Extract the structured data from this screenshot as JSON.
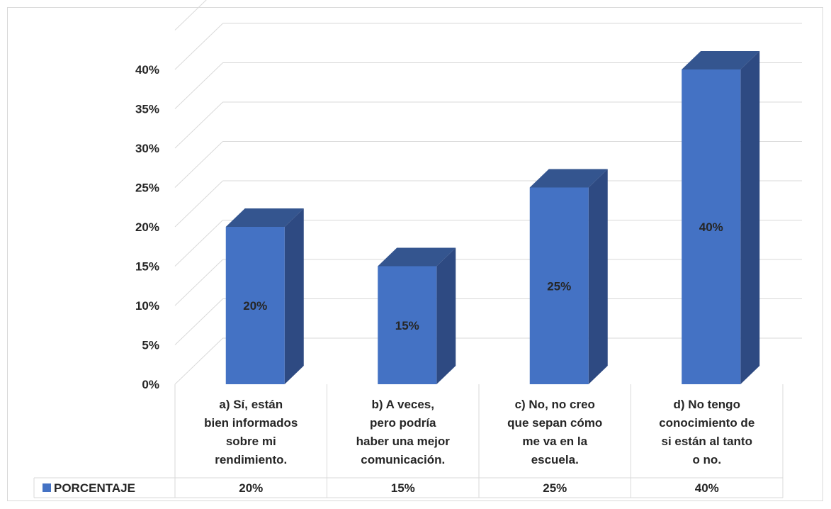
{
  "chart_data": {
    "type": "bar",
    "categories": [
      [
        "a) Sí, están",
        "bien informados",
        "sobre mi",
        "rendimiento."
      ],
      [
        "b) A veces,",
        "pero podría",
        "haber una mejor",
        "comunicación."
      ],
      [
        "c) No, no creo",
        "que sepan cómo",
        "me va en la",
        "escuela."
      ],
      [
        "d) No tengo",
        "conocimiento de",
        "si están al tanto",
        "o no."
      ]
    ],
    "series": [
      {
        "name": "PORCENTAJE",
        "values": [
          20,
          15,
          25,
          40
        ],
        "labels": [
          "20%",
          "15%",
          "25%",
          "40%"
        ],
        "color": "#4472c4",
        "side_color": "#2e4a82",
        "top_color": "#34558f"
      }
    ],
    "yticks": [
      "0%",
      "5%",
      "10%",
      "15%",
      "20%",
      "25%",
      "30%",
      "35%",
      "40%"
    ],
    "ylim": [
      0,
      40
    ],
    "title": "",
    "xlabel": "",
    "ylabel": "",
    "grid": true,
    "legend": "data-table-bottom",
    "gridline_color": "#d9d9d9"
  }
}
